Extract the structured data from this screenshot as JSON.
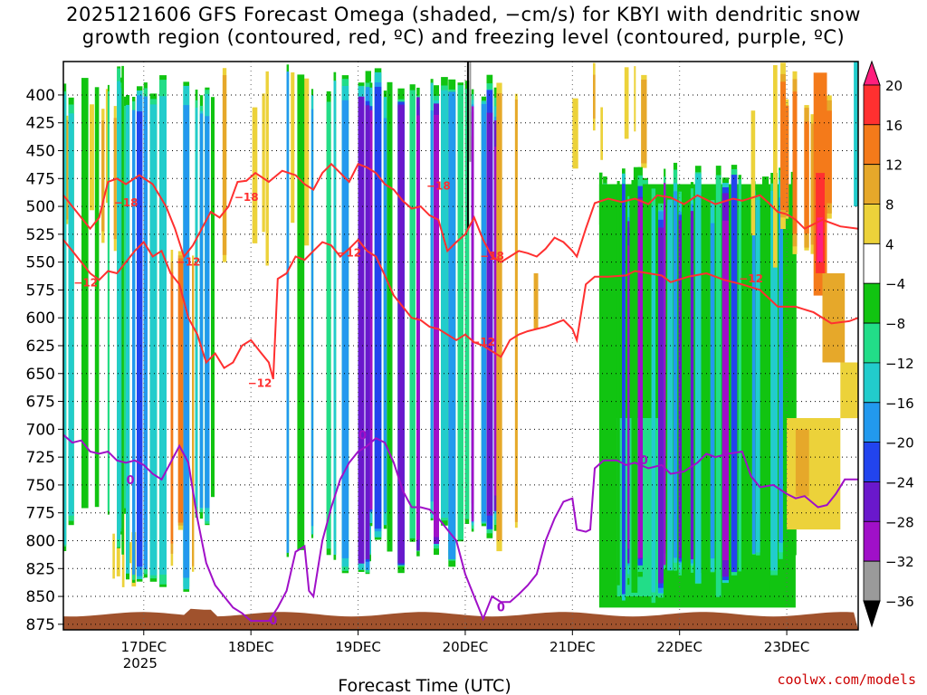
{
  "chart_data": {
    "type": "heatmap",
    "title_lines": [
      "2025121606 GFS Forecast Omega (shaded, −cm/s) for KBYI with dendritic snow",
      "growth region (contoured, red, ºC) and freezing level (contoured, purple, ºC)"
    ],
    "xlabel": "Forecast Time (UTC)",
    "ylabel": "",
    "x_ticks": [
      {
        "label": "17DEC",
        "sub": "2025",
        "x": 24
      },
      {
        "label": "18DEC",
        "sub": "",
        "x": 48
      },
      {
        "label": "19DEC",
        "sub": "",
        "x": 72
      },
      {
        "label": "20DEC",
        "sub": "",
        "x": 96
      },
      {
        "label": "21DEC",
        "sub": "",
        "x": 120
      },
      {
        "label": "22DEC",
        "sub": "",
        "x": 144
      },
      {
        "label": "23DEC",
        "sub": "",
        "x": 168
      }
    ],
    "xlim": [
      6,
      184
    ],
    "y_levels": [
      400,
      425,
      450,
      475,
      500,
      525,
      550,
      575,
      600,
      625,
      650,
      675,
      700,
      725,
      750,
      775,
      800,
      825,
      850,
      875
    ],
    "ylim": [
      370,
      880
    ],
    "colorbar": {
      "ticks": [
        "20",
        "16",
        "12",
        "8",
        "4",
        "−4",
        "−8",
        "−12",
        "−16",
        "−20",
        "−24",
        "−28",
        "−32",
        "−36"
      ],
      "colors": [
        "#ff1f7d",
        "#ff3030",
        "#f47a1a",
        "#e6a82a",
        "#ecd23a",
        "#ffffff",
        "#11c411",
        "#22dd88",
        "#22cccc",
        "#2299ee",
        "#2244ee",
        "#6a18cc",
        "#a010c8",
        "#9a9a9a",
        "#000000"
      ]
    },
    "contour_labels": {
      "red": [
        "−18",
        "−18",
        "−18",
        "−18",
        "−12",
        "−12",
        "−12",
        "−12",
        "−12",
        "−12"
      ],
      "purple": [
        "0",
        "0",
        "0",
        "0",
        "0"
      ]
    },
    "legend": "none",
    "grid": true
  },
  "credit": "coolwx.com/models"
}
